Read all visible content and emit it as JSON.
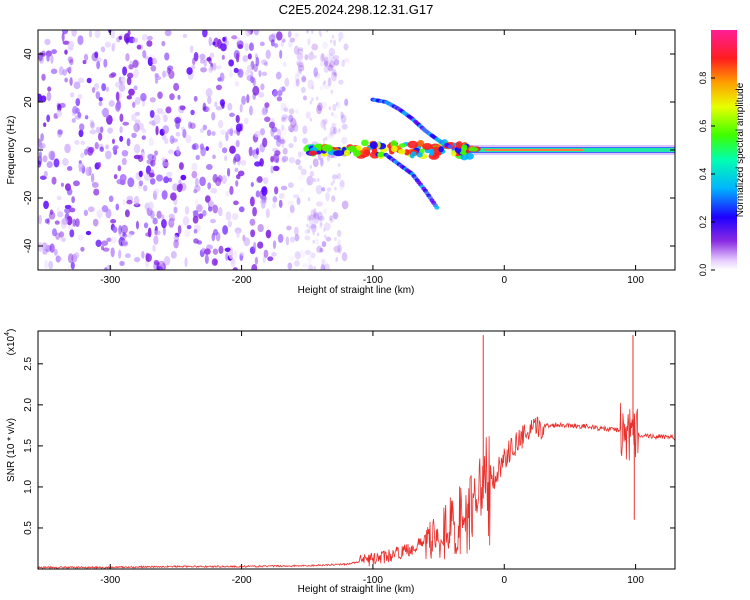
{
  "title": "C2E5.2024.298.12.31.G17",
  "chart_data": [
    {
      "type": "heatmap",
      "xlabel": "Height of straight line (km)",
      "ylabel": "Frequency (Hz)",
      "xlim": [
        -355,
        130
      ],
      "ylim": [
        -50,
        50
      ],
      "xticks": [
        -300,
        -200,
        -100,
        0,
        100
      ],
      "yticks": [
        -40,
        -20,
        0,
        20,
        40
      ],
      "colorbar": {
        "label": "Normalized spectral amplitude",
        "range": [
          0.0,
          1.0
        ],
        "ticks": [
          "0.0",
          "0.2",
          "0.4",
          "0.6",
          "0.8"
        ]
      },
      "features": {
        "main_line_hz": 0,
        "noise_region_km": [
          -355,
          -140
        ],
        "upper_branch_points": [
          [
            -100,
            21
          ],
          [
            -90,
            20
          ],
          [
            -80,
            17
          ],
          [
            -70,
            13
          ],
          [
            -60,
            8
          ],
          [
            -50,
            4
          ],
          [
            -40,
            1
          ]
        ],
        "lower_branch_points": [
          [
            -90,
            -2
          ],
          [
            -80,
            -6
          ],
          [
            -70,
            -10
          ],
          [
            -60,
            -17
          ],
          [
            -50,
            -25
          ]
        ]
      }
    },
    {
      "type": "line",
      "xlabel": "Height of straight line (km)",
      "ylabel": "SNR (10 * v/v)",
      "yscale_note": "(x10^4)",
      "xlim": [
        -355,
        130
      ],
      "ylim": [
        0,
        2.9
      ],
      "xticks": [
        -300,
        -200,
        -100,
        0,
        100
      ],
      "yticks": [
        "0.5",
        "1.0",
        "1.5",
        "2.0",
        "2.5"
      ],
      "color": "#e8302c",
      "series": [
        {
          "x": [
            -355,
            -300,
            -250,
            -200,
            -150,
            -120,
            -100,
            -90,
            -80,
            -70,
            -60,
            -50,
            -40,
            -30,
            -20,
            -15,
            -10,
            -5,
            0,
            10,
            20,
            30,
            40,
            50,
            60,
            70,
            80,
            90,
            95,
            100,
            105,
            110,
            120,
            130
          ],
          "y": [
            0.02,
            0.02,
            0.03,
            0.03,
            0.04,
            0.06,
            0.12,
            0.15,
            0.2,
            0.25,
            0.35,
            0.45,
            0.5,
            0.6,
            0.7,
            0.9,
            1.05,
            1.2,
            1.35,
            1.55,
            1.68,
            1.74,
            1.76,
            1.75,
            1.74,
            1.72,
            1.7,
            1.69,
            1.6,
            1.65,
            1.63,
            1.62,
            1.61,
            1.6
          ]
        }
      ],
      "spikes": [
        [
          -16,
          2.85
        ],
        [
          98,
          2.85
        ],
        [
          99,
          0.6
        ]
      ]
    }
  ],
  "labels": {
    "x_exponent_base": "(x10",
    "x_exponent_power": "4",
    "x_exponent_close": ")"
  }
}
